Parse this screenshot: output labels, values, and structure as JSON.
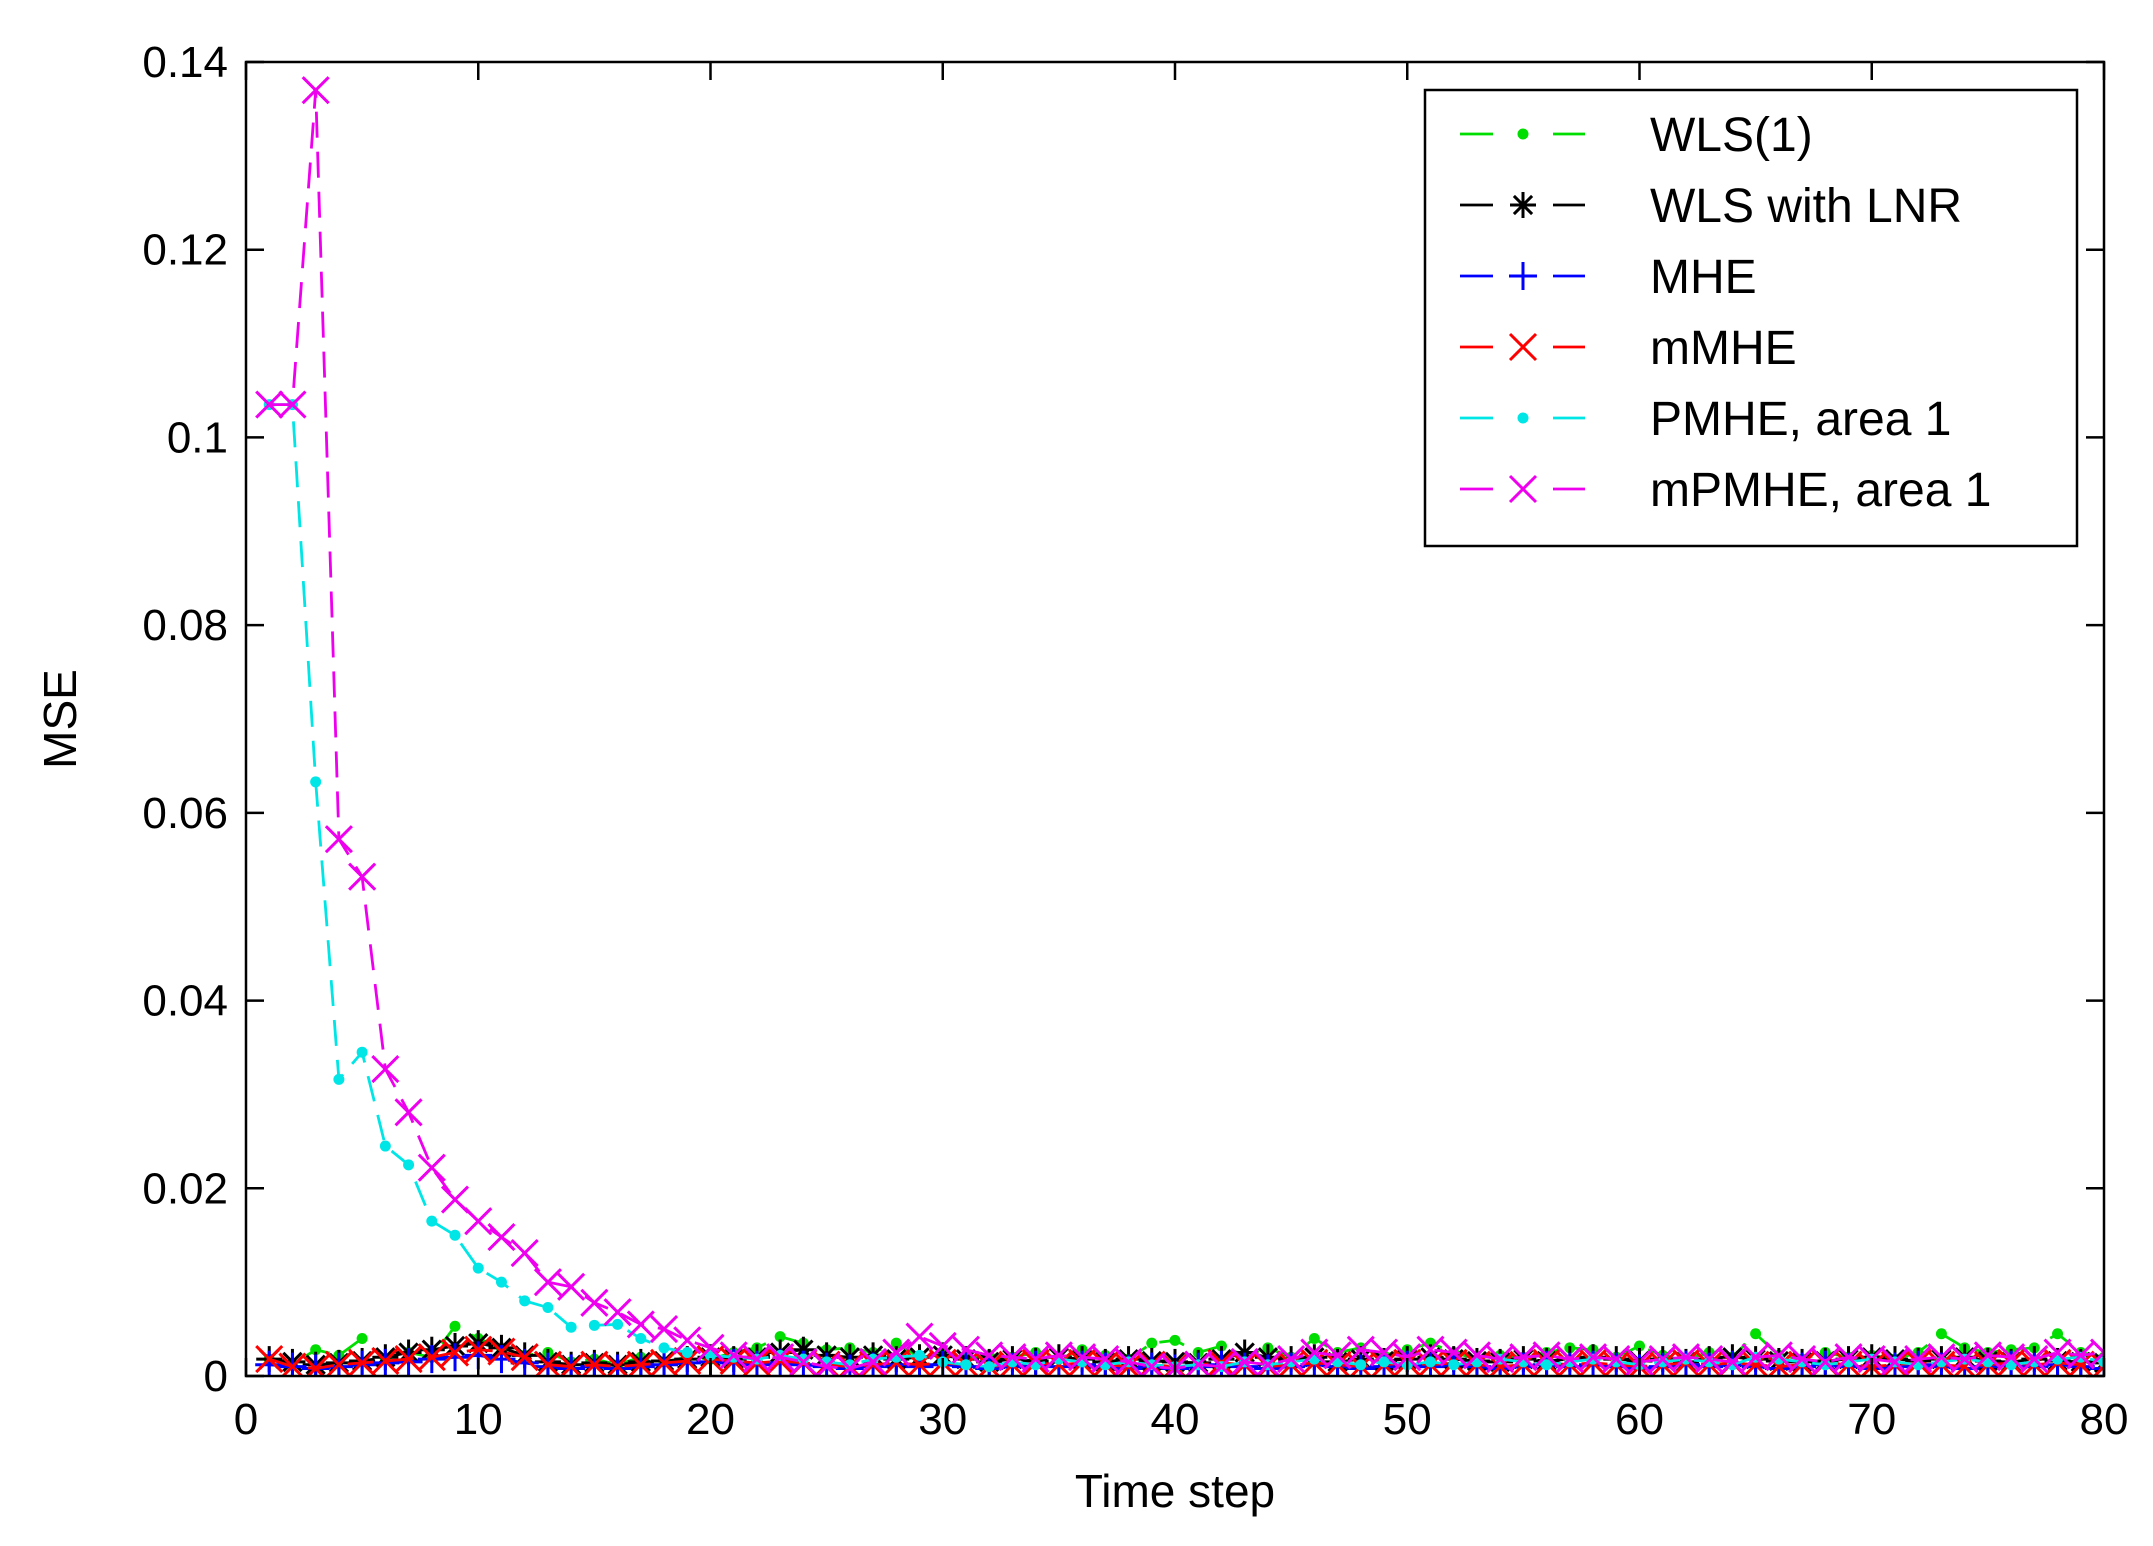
{
  "chart_data": {
    "type": "line",
    "title": "",
    "xlabel": "Time step",
    "ylabel": "MSE",
    "xlim": [
      0,
      80
    ],
    "ylim": [
      0,
      0.14
    ],
    "xticks": [
      0,
      10,
      20,
      30,
      40,
      50,
      60,
      70,
      80
    ],
    "yticks": [
      0,
      0.02,
      0.04,
      0.06,
      0.08,
      0.1,
      0.12,
      0.14
    ],
    "xtick_labels": [
      "0",
      "10",
      "20",
      "30",
      "40",
      "50",
      "60",
      "70",
      "80"
    ],
    "ytick_labels": [
      "0",
      "0.02",
      "0.04",
      "0.06",
      "0.08",
      "0.1",
      "0.12",
      "0.14"
    ],
    "grid": false,
    "legend_position": "top-right",
    "series": [
      {
        "name": "WLS(1)",
        "color": "#00dd00",
        "marker": "dot",
        "x": [
          1,
          2,
          3,
          4,
          5,
          6,
          7,
          8,
          9,
          10,
          11,
          12,
          13,
          14,
          15,
          16,
          17,
          18,
          19,
          20,
          21,
          22,
          23,
          24,
          25,
          26,
          27,
          28,
          29,
          30,
          31,
          32,
          33,
          34,
          35,
          36,
          37,
          38,
          39,
          40,
          41,
          42,
          43,
          44,
          45,
          46,
          47,
          48,
          49,
          50,
          51,
          52,
          53,
          54,
          55,
          56,
          57,
          58,
          59,
          60,
          61,
          62,
          63,
          64,
          65,
          66,
          67,
          68,
          69,
          70,
          71,
          72,
          73,
          74,
          75,
          76,
          77,
          78,
          79,
          80
        ],
        "y": [
          0.0018,
          0.0012,
          0.0028,
          0.0022,
          0.004,
          0.0018,
          0.0025,
          0.002,
          0.0053,
          0.004,
          0.003,
          0.0022,
          0.0025,
          0.0015,
          0.0018,
          0.0012,
          0.002,
          0.0015,
          0.002,
          0.0018,
          0.0025,
          0.003,
          0.0042,
          0.0035,
          0.0028,
          0.003,
          0.0025,
          0.0035,
          0.002,
          0.0025,
          0.0018,
          0.0022,
          0.002,
          0.0025,
          0.0018,
          0.0028,
          0.0022,
          0.0018,
          0.0035,
          0.0038,
          0.0025,
          0.0032,
          0.0022,
          0.003,
          0.002,
          0.004,
          0.0025,
          0.003,
          0.0022,
          0.0028,
          0.0035,
          0.0025,
          0.0018,
          0.0022,
          0.002,
          0.0025,
          0.003,
          0.0028,
          0.002,
          0.0032,
          0.0022,
          0.0018,
          0.0025,
          0.002,
          0.0045,
          0.0022,
          0.0018,
          0.0025,
          0.002,
          0.0022,
          0.0018,
          0.0025,
          0.0045,
          0.003,
          0.0025,
          0.0028,
          0.003,
          0.0045,
          0.0025,
          0.002
        ]
      },
      {
        "name": "WLS with LNR",
        "color": "#000000",
        "marker": "asterisk",
        "x": [
          1,
          2,
          3,
          4,
          5,
          6,
          7,
          8,
          9,
          10,
          11,
          12,
          13,
          14,
          15,
          16,
          17,
          18,
          19,
          20,
          21,
          22,
          23,
          24,
          25,
          26,
          27,
          28,
          29,
          30,
          31,
          32,
          33,
          34,
          35,
          36,
          37,
          38,
          39,
          40,
          41,
          42,
          43,
          44,
          45,
          46,
          47,
          48,
          49,
          50,
          51,
          52,
          53,
          54,
          55,
          56,
          57,
          58,
          59,
          60,
          61,
          62,
          63,
          64,
          65,
          66,
          67,
          68,
          69,
          70,
          71,
          72,
          73,
          74,
          75,
          76,
          77,
          78,
          79,
          80
        ],
        "y": [
          0.0018,
          0.0015,
          0.0012,
          0.0014,
          0.0016,
          0.002,
          0.0025,
          0.0028,
          0.0032,
          0.0035,
          0.003,
          0.0022,
          0.0015,
          0.0012,
          0.0014,
          0.0012,
          0.0015,
          0.0016,
          0.0018,
          0.002,
          0.0018,
          0.002,
          0.0025,
          0.0028,
          0.0022,
          0.002,
          0.0022,
          0.0018,
          0.002,
          0.0022,
          0.0018,
          0.0015,
          0.0018,
          0.0016,
          0.002,
          0.0018,
          0.0015,
          0.0018,
          0.0016,
          0.0015,
          0.0014,
          0.0018,
          0.0025,
          0.002,
          0.0018,
          0.002,
          0.0015,
          0.0018,
          0.0016,
          0.0018,
          0.002,
          0.0018,
          0.0016,
          0.0015,
          0.0018,
          0.0016,
          0.0018,
          0.002,
          0.0018,
          0.0016,
          0.0018,
          0.0015,
          0.0018,
          0.002,
          0.0018,
          0.0016,
          0.0015,
          0.0016,
          0.0018,
          0.002,
          0.0018,
          0.0016,
          0.0018,
          0.002,
          0.0016,
          0.0015,
          0.0018,
          0.0016,
          0.0015,
          0.0014
        ]
      },
      {
        "name": "MHE",
        "color": "#0000ff",
        "marker": "plus",
        "x": [
          1,
          2,
          3,
          4,
          5,
          6,
          7,
          8,
          9,
          10,
          11,
          12,
          13,
          14,
          15,
          16,
          17,
          18,
          19,
          20,
          21,
          22,
          23,
          24,
          25,
          26,
          27,
          28,
          29,
          30,
          31,
          32,
          33,
          34,
          35,
          36,
          37,
          38,
          39,
          40,
          41,
          42,
          43,
          44,
          45,
          46,
          47,
          48,
          49,
          50,
          51,
          52,
          53,
          54,
          55,
          56,
          57,
          58,
          59,
          60,
          61,
          62,
          63,
          64,
          65,
          66,
          67,
          68,
          69,
          70,
          71,
          72,
          73,
          74,
          75,
          76,
          77,
          78,
          79,
          80
        ],
        "y": [
          0.0012,
          0.001,
          0.0008,
          0.001,
          0.0012,
          0.0014,
          0.0015,
          0.0018,
          0.002,
          0.0022,
          0.0018,
          0.0014,
          0.001,
          0.0008,
          0.001,
          0.0008,
          0.001,
          0.0012,
          0.0014,
          0.0015,
          0.0014,
          0.0012,
          0.0014,
          0.0012,
          0.001,
          0.0008,
          0.001,
          0.0012,
          0.001,
          0.0012,
          0.001,
          0.0008,
          0.001,
          0.0012,
          0.001,
          0.0012,
          0.001,
          0.0008,
          0.001,
          0.0008,
          0.001,
          0.0012,
          0.001,
          0.0008,
          0.001,
          0.0012,
          0.001,
          0.0008,
          0.001,
          0.0012,
          0.001,
          0.0012,
          0.001,
          0.0008,
          0.001,
          0.0012,
          0.001,
          0.0012,
          0.001,
          0.0008,
          0.001,
          0.0012,
          0.001,
          0.0012,
          0.001,
          0.0008,
          0.001,
          0.0012,
          0.001,
          0.0008,
          0.001,
          0.0012,
          0.001,
          0.0008,
          0.001,
          0.0012,
          0.001,
          0.0012,
          0.001,
          0.0008
        ]
      },
      {
        "name": "mMHE",
        "color": "#ff0000",
        "marker": "cross",
        "x": [
          1,
          2,
          3,
          4,
          5,
          6,
          7,
          8,
          9,
          10,
          11,
          12,
          13,
          14,
          15,
          16,
          17,
          18,
          19,
          20,
          21,
          22,
          23,
          24,
          25,
          26,
          27,
          28,
          29,
          30,
          31,
          32,
          33,
          34,
          35,
          36,
          37,
          38,
          39,
          40,
          41,
          42,
          43,
          44,
          45,
          46,
          47,
          48,
          49,
          50,
          51,
          52,
          53,
          54,
          55,
          56,
          57,
          58,
          59,
          60,
          61,
          62,
          63,
          64,
          65,
          66,
          67,
          68,
          69,
          70,
          71,
          72,
          73,
          74,
          75,
          76,
          77,
          78,
          79,
          80
        ],
        "y": [
          0.0018,
          0.001,
          0.0008,
          0.0012,
          0.0014,
          0.0016,
          0.0018,
          0.002,
          0.0025,
          0.0028,
          0.0026,
          0.002,
          0.0012,
          0.001,
          0.0012,
          0.001,
          0.0012,
          0.0014,
          0.0016,
          0.0018,
          0.0016,
          0.0014,
          0.0016,
          0.0014,
          0.0012,
          0.001,
          0.0012,
          0.0014,
          0.0012,
          0.0014,
          0.0012,
          0.001,
          0.0012,
          0.0014,
          0.0012,
          0.0014,
          0.0012,
          0.001,
          0.0012,
          0.001,
          0.0012,
          0.0014,
          0.0012,
          0.001,
          0.0012,
          0.0014,
          0.0012,
          0.001,
          0.0012,
          0.0014,
          0.0012,
          0.0014,
          0.0012,
          0.001,
          0.0012,
          0.0014,
          0.0012,
          0.0014,
          0.0012,
          0.001,
          0.0012,
          0.0014,
          0.0012,
          0.0014,
          0.0012,
          0.001,
          0.0012,
          0.0014,
          0.0012,
          0.001,
          0.0012,
          0.0014,
          0.0012,
          0.001,
          0.0012,
          0.0014,
          0.0012,
          0.0014,
          0.0012,
          0.001
        ]
      },
      {
        "name": "PMHE, area 1",
        "color": "#00e5e5",
        "marker": "dot",
        "x": [
          1,
          2,
          3,
          4,
          5,
          6,
          7,
          8,
          9,
          10,
          11,
          12,
          13,
          14,
          15,
          16,
          17,
          18,
          19,
          20,
          21,
          22,
          23,
          24,
          25,
          26,
          27,
          28,
          29,
          30,
          31,
          32,
          33,
          34,
          35,
          36,
          37,
          38,
          39,
          40,
          41,
          42,
          43,
          44,
          45,
          46,
          47,
          48,
          49,
          50,
          51,
          52,
          53,
          54,
          55,
          56,
          57,
          58,
          59,
          60,
          61,
          62,
          63,
          64,
          65,
          66,
          67,
          68,
          69,
          70,
          71,
          72,
          73,
          74,
          75,
          76,
          77,
          78,
          79,
          80
        ],
        "y": [
          0.1035,
          0.1035,
          0.0633,
          0.0316,
          0.0345,
          0.0245,
          0.0225,
          0.0165,
          0.015,
          0.0115,
          0.01,
          0.008,
          0.0073,
          0.0052,
          0.0054,
          0.0055,
          0.004,
          0.003,
          0.0025,
          0.0022,
          0.002,
          0.0018,
          0.0022,
          0.0018,
          0.0015,
          0.0012,
          0.0018,
          0.002,
          0.0022,
          0.0015,
          0.0012,
          0.001,
          0.0015,
          0.0012,
          0.0018,
          0.0015,
          0.0012,
          0.0015,
          0.0012,
          0.001,
          0.0012,
          0.001,
          0.0015,
          0.0012,
          0.0015,
          0.0018,
          0.0015,
          0.0012,
          0.0015,
          0.0012,
          0.0015,
          0.0012,
          0.0015,
          0.0018,
          0.0015,
          0.0012,
          0.0015,
          0.0018,
          0.0015,
          0.0012,
          0.0015,
          0.0018,
          0.0015,
          0.0012,
          0.002,
          0.0018,
          0.0015,
          0.0012,
          0.0015,
          0.0018,
          0.0015,
          0.0012,
          0.0015,
          0.0018,
          0.0015,
          0.0012,
          0.0015,
          0.0018,
          0.002,
          0.0015
        ]
      },
      {
        "name": "mPMHE, area 1",
        "color": "#ee00ee",
        "marker": "cross",
        "x": [
          1,
          2,
          3,
          4,
          5,
          6,
          7,
          8,
          9,
          10,
          11,
          12,
          13,
          14,
          15,
          16,
          17,
          18,
          19,
          20,
          21,
          22,
          23,
          24,
          25,
          26,
          27,
          28,
          29,
          30,
          31,
          32,
          33,
          34,
          35,
          36,
          37,
          38,
          39,
          40,
          41,
          42,
          43,
          44,
          45,
          46,
          47,
          48,
          49,
          50,
          51,
          52,
          53,
          54,
          55,
          56,
          57,
          58,
          59,
          60,
          61,
          62,
          63,
          64,
          65,
          66,
          67,
          68,
          69,
          70,
          71,
          72,
          73,
          74,
          75,
          76,
          77,
          78,
          79,
          80
        ],
        "y": [
          0.1035,
          0.1035,
          0.137,
          0.0572,
          0.0532,
          0.0327,
          0.0281,
          0.0222,
          0.0188,
          0.0165,
          0.0148,
          0.0131,
          0.01,
          0.0095,
          0.0078,
          0.0068,
          0.0055,
          0.005,
          0.0038,
          0.003,
          0.0022,
          0.0018,
          0.002,
          0.0015,
          0.001,
          0.0008,
          0.0015,
          0.0025,
          0.0042,
          0.0032,
          0.0028,
          0.0022,
          0.002,
          0.0018,
          0.0022,
          0.002,
          0.0018,
          0.0015,
          0.001,
          0.0008,
          0.0012,
          0.001,
          0.0015,
          0.0012,
          0.0018,
          0.0025,
          0.0022,
          0.0028,
          0.0025,
          0.002,
          0.0028,
          0.0025,
          0.0022,
          0.0018,
          0.002,
          0.0022,
          0.0018,
          0.002,
          0.0018,
          0.0015,
          0.0018,
          0.002,
          0.0018,
          0.0015,
          0.002,
          0.0022,
          0.0018,
          0.0015,
          0.002,
          0.0018,
          0.0015,
          0.0018,
          0.002,
          0.0018,
          0.0022,
          0.002,
          0.0018,
          0.0025,
          0.0022,
          0.0025
        ]
      }
    ]
  }
}
